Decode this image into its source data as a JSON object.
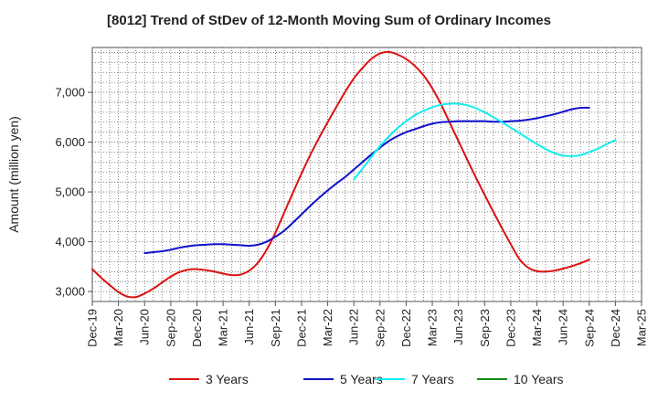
{
  "chart_data": {
    "type": "line",
    "title": "[8012]  Trend of StDev of 12-Month Moving Sum of Ordinary Incomes",
    "xlabel": "",
    "ylabel": "Amount (million yen)",
    "ylim": [
      2800,
      7900
    ],
    "yticks": [
      3000,
      4000,
      5000,
      6000,
      7000
    ],
    "ytick_labels": [
      "3,000",
      "4,000",
      "5,000",
      "6,000",
      "7,000"
    ],
    "xticks": [
      "Dec-19",
      "Mar-20",
      "Jun-20",
      "Sep-20",
      "Dec-20",
      "Mar-21",
      "Jun-21",
      "Sep-21",
      "Dec-21",
      "Mar-22",
      "Jun-22",
      "Sep-22",
      "Dec-22",
      "Mar-23",
      "Jun-23",
      "Sep-23",
      "Dec-23",
      "Mar-24",
      "Jun-24",
      "Sep-24",
      "Dec-24",
      "Mar-25"
    ],
    "grid": true,
    "legend_position": "bottom",
    "series": [
      {
        "name": "3 Years",
        "color": "#dd1111",
        "points": [
          [
            0,
            3450
          ],
          [
            1,
            3280
          ],
          [
            2,
            3130
          ],
          [
            3,
            2990
          ],
          [
            4,
            2900
          ],
          [
            5,
            2890
          ],
          [
            6,
            2960
          ],
          [
            7,
            3060
          ],
          [
            8,
            3180
          ],
          [
            9,
            3300
          ],
          [
            10,
            3390
          ],
          [
            11,
            3440
          ],
          [
            12,
            3450
          ],
          [
            13,
            3430
          ],
          [
            14,
            3400
          ],
          [
            15,
            3360
          ],
          [
            16,
            3330
          ],
          [
            17,
            3340
          ],
          [
            18,
            3420
          ],
          [
            19,
            3580
          ],
          [
            20,
            3840
          ],
          [
            21,
            4180
          ],
          [
            22,
            4580
          ],
          [
            23,
            4980
          ],
          [
            24,
            5370
          ],
          [
            25,
            5740
          ],
          [
            26,
            6080
          ],
          [
            27,
            6400
          ],
          [
            28,
            6710
          ],
          [
            29,
            7010
          ],
          [
            30,
            7280
          ],
          [
            31,
            7490
          ],
          [
            32,
            7670
          ],
          [
            33,
            7780
          ],
          [
            34,
            7810
          ],
          [
            35,
            7760
          ],
          [
            36,
            7670
          ],
          [
            37,
            7530
          ],
          [
            38,
            7340
          ],
          [
            39,
            7080
          ],
          [
            40,
            6760
          ],
          [
            41,
            6390
          ],
          [
            42,
            6020
          ],
          [
            43,
            5650
          ],
          [
            44,
            5290
          ],
          [
            45,
            4940
          ],
          [
            46,
            4600
          ],
          [
            47,
            4270
          ],
          [
            48,
            3950
          ],
          [
            49,
            3650
          ],
          [
            50,
            3480
          ],
          [
            51,
            3410
          ],
          [
            52,
            3400
          ],
          [
            53,
            3420
          ],
          [
            54,
            3460
          ],
          [
            55,
            3510
          ],
          [
            56,
            3570
          ],
          [
            57,
            3640
          ]
        ]
      },
      {
        "name": "5 Years",
        "color": "#1111cc",
        "points": [
          [
            6,
            3770
          ],
          [
            7,
            3790
          ],
          [
            8,
            3810
          ],
          [
            9,
            3840
          ],
          [
            10,
            3880
          ],
          [
            11,
            3910
          ],
          [
            12,
            3930
          ],
          [
            13,
            3940
          ],
          [
            14,
            3950
          ],
          [
            15,
            3950
          ],
          [
            16,
            3940
          ],
          [
            17,
            3930
          ],
          [
            18,
            3920
          ],
          [
            19,
            3940
          ],
          [
            20,
            4000
          ],
          [
            21,
            4100
          ],
          [
            22,
            4220
          ],
          [
            23,
            4380
          ],
          [
            24,
            4550
          ],
          [
            25,
            4720
          ],
          [
            26,
            4880
          ],
          [
            27,
            5030
          ],
          [
            28,
            5170
          ],
          [
            29,
            5300
          ],
          [
            30,
            5450
          ],
          [
            31,
            5600
          ],
          [
            32,
            5750
          ],
          [
            33,
            5890
          ],
          [
            34,
            6020
          ],
          [
            35,
            6120
          ],
          [
            36,
            6200
          ],
          [
            37,
            6260
          ],
          [
            38,
            6320
          ],
          [
            39,
            6370
          ],
          [
            40,
            6400
          ],
          [
            41,
            6410
          ],
          [
            42,
            6420
          ],
          [
            43,
            6420
          ],
          [
            44,
            6420
          ],
          [
            45,
            6420
          ],
          [
            46,
            6410
          ],
          [
            47,
            6410
          ],
          [
            48,
            6420
          ],
          [
            49,
            6430
          ],
          [
            50,
            6450
          ],
          [
            51,
            6480
          ],
          [
            52,
            6520
          ],
          [
            53,
            6560
          ],
          [
            54,
            6610
          ],
          [
            55,
            6660
          ],
          [
            56,
            6690
          ],
          [
            57,
            6690
          ]
        ]
      },
      {
        "name": "7 Years",
        "color": "#11eeee",
        "points": [
          [
            30,
            5250
          ],
          [
            31,
            5470
          ],
          [
            32,
            5700
          ],
          [
            33,
            5920
          ],
          [
            34,
            6110
          ],
          [
            35,
            6280
          ],
          [
            36,
            6420
          ],
          [
            37,
            6540
          ],
          [
            38,
            6630
          ],
          [
            39,
            6700
          ],
          [
            40,
            6750
          ],
          [
            41,
            6770
          ],
          [
            42,
            6770
          ],
          [
            43,
            6740
          ],
          [
            44,
            6680
          ],
          [
            45,
            6600
          ],
          [
            46,
            6500
          ],
          [
            47,
            6400
          ],
          [
            48,
            6290
          ],
          [
            49,
            6180
          ],
          [
            50,
            6070
          ],
          [
            51,
            5960
          ],
          [
            52,
            5860
          ],
          [
            53,
            5780
          ],
          [
            54,
            5730
          ],
          [
            55,
            5720
          ],
          [
            56,
            5740
          ],
          [
            57,
            5800
          ],
          [
            58,
            5870
          ],
          [
            59,
            5960
          ],
          [
            60,
            6040
          ]
        ]
      },
      {
        "name": "10 Years",
        "color": "#118811",
        "points": []
      }
    ]
  }
}
